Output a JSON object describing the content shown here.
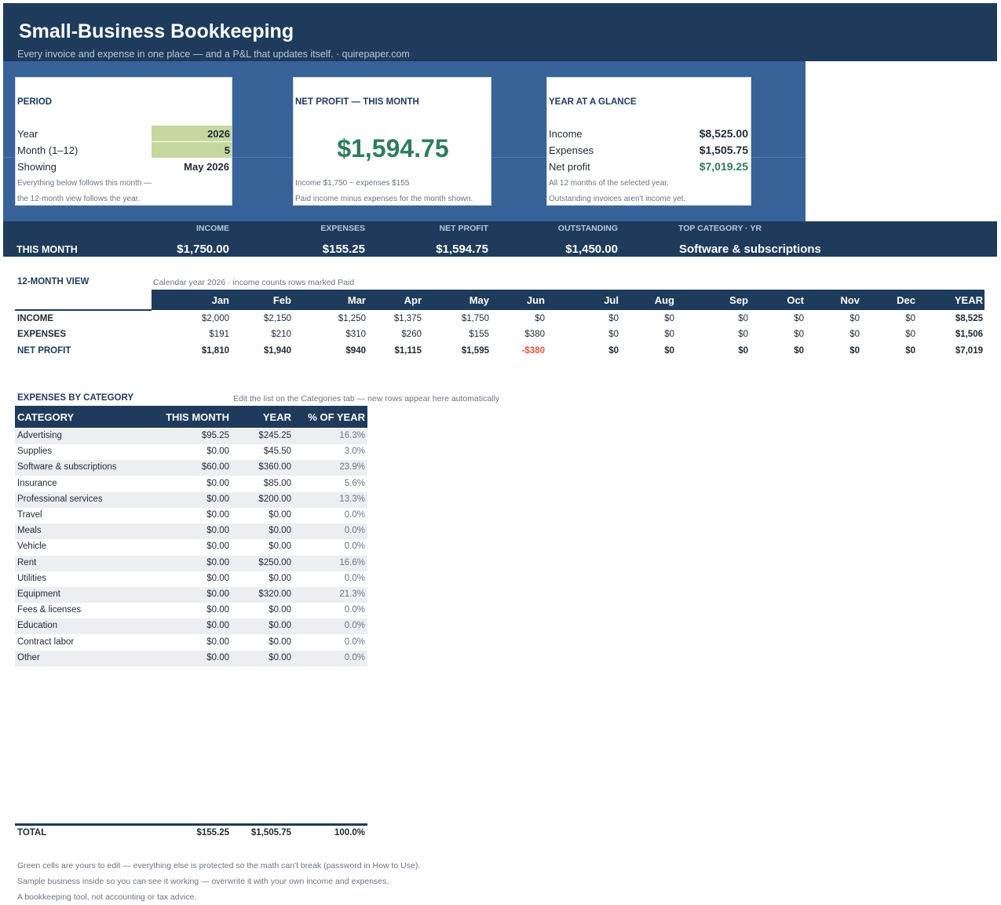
{
  "header": {
    "title": "Small-Business Bookkeeping",
    "subtitle": "Every invoice and expense in one place — and a P&L that updates itself.  ·  quirepaper.com"
  },
  "period": {
    "title": "PERIOD",
    "year_label": "Year",
    "year_value": "2026",
    "month_label": "Month  (1–12)",
    "month_value": "5",
    "showing_label": "Showing",
    "showing_value": "May 2026",
    "note1": "Everything below follows this month —",
    "note2": "the 12-month view follows the year."
  },
  "net_profit_card": {
    "title": "NET PROFIT — THIS MONTH",
    "value": "$1,594.75",
    "note1": "Income $1,750  −  expenses $155",
    "note2": "Paid income minus expenses for the month shown."
  },
  "year_card": {
    "title": "YEAR AT A GLANCE",
    "income_label": "Income",
    "income_value": "$8,525.00",
    "expenses_label": "Expenses",
    "expenses_value": "$1,505.75",
    "net_label": "Net profit",
    "net_value": "$7,019.25",
    "note1": "All 12 months of the selected year.",
    "note2": "Outstanding invoices aren't income yet."
  },
  "this_month": {
    "label": "THIS MONTH",
    "income_head": "INCOME",
    "income": "$1,750.00",
    "expenses_head": "EXPENSES",
    "expenses": "$155.25",
    "net_head": "NET PROFIT",
    "net": "$1,594.75",
    "outstanding_head": "OUTSTANDING",
    "outstanding": "$1,450.00",
    "topcat_head": "TOP CATEGORY · YR",
    "topcat": "Software & subscriptions"
  },
  "twelve_month": {
    "title": "12-MONTH VIEW",
    "note": "Calendar year 2026  ·  income counts rows marked Paid",
    "headers": [
      "Jan",
      "Feb",
      "Mar",
      "Apr",
      "May",
      "Jun",
      "Jul",
      "Aug",
      "Sep",
      "Oct",
      "Nov",
      "Dec",
      "YEAR"
    ],
    "rows": [
      {
        "label": "INCOME",
        "values": [
          "$2,000",
          "$2,150",
          "$1,250",
          "$1,375",
          "$1,750",
          "$0",
          "$0",
          "$0",
          "$0",
          "$0",
          "$0",
          "$0",
          "$8,525"
        ]
      },
      {
        "label": "EXPENSES",
        "values": [
          "$191",
          "$210",
          "$310",
          "$260",
          "$155",
          "$380",
          "$0",
          "$0",
          "$0",
          "$0",
          "$0",
          "$0",
          "$1,506"
        ]
      },
      {
        "label": "NET PROFIT",
        "values": [
          "$1,810",
          "$1,940",
          "$940",
          "$1,115",
          "$1,595",
          "-$380",
          "$0",
          "$0",
          "$0",
          "$0",
          "$0",
          "$0",
          "$7,019"
        ]
      }
    ]
  },
  "categories": {
    "title": "EXPENSES BY CATEGORY",
    "note": "Edit the list on the Categories tab — new rows appear here automatically",
    "headers": [
      "CATEGORY",
      "THIS MONTH",
      "YEAR",
      "% OF YEAR"
    ],
    "rows": [
      {
        "name": "Advertising",
        "month": "$95.25",
        "year": "$245.25",
        "pct": "16.3%"
      },
      {
        "name": "Supplies",
        "month": "$0.00",
        "year": "$45.50",
        "pct": "3.0%"
      },
      {
        "name": "Software & subscriptions",
        "month": "$60.00",
        "year": "$360.00",
        "pct": "23.9%"
      },
      {
        "name": "Insurance",
        "month": "$0.00",
        "year": "$85.00",
        "pct": "5.6%"
      },
      {
        "name": "Professional services",
        "month": "$0.00",
        "year": "$200.00",
        "pct": "13.3%"
      },
      {
        "name": "Travel",
        "month": "$0.00",
        "year": "$0.00",
        "pct": "0.0%"
      },
      {
        "name": "Meals",
        "month": "$0.00",
        "year": "$0.00",
        "pct": "0.0%"
      },
      {
        "name": "Vehicle",
        "month": "$0.00",
        "year": "$0.00",
        "pct": "0.0%"
      },
      {
        "name": "Rent",
        "month": "$0.00",
        "year": "$250.00",
        "pct": "16.6%"
      },
      {
        "name": "Utilities",
        "month": "$0.00",
        "year": "$0.00",
        "pct": "0.0%"
      },
      {
        "name": "Equipment",
        "month": "$0.00",
        "year": "$320.00",
        "pct": "21.3%"
      },
      {
        "name": "Fees & licenses",
        "month": "$0.00",
        "year": "$0.00",
        "pct": "0.0%"
      },
      {
        "name": "Education",
        "month": "$0.00",
        "year": "$0.00",
        "pct": "0.0%"
      },
      {
        "name": "Contract labor",
        "month": "$0.00",
        "year": "$0.00",
        "pct": "0.0%"
      },
      {
        "name": "Other",
        "month": "$0.00",
        "year": "$0.00",
        "pct": "0.0%"
      }
    ],
    "total": {
      "label": "TOTAL",
      "month": "$155.25",
      "year": "$1,505.75",
      "pct": "100.0%"
    }
  },
  "footer": {
    "line1": "Green cells are yours to edit — everything else is protected so the math can't break (password in How to Use).",
    "line2": "Sample business inside so you can see it working — overwrite it with your own income and expenses.",
    "line3": "A bookkeeping tool, not accounting or tax advice."
  },
  "colors": {
    "navy": "#1e3b5c",
    "panel_blue": "#37629a",
    "input_green": "#c5d99f",
    "profit_green": "#2e7d5b",
    "negative_red": "#e0573a"
  }
}
